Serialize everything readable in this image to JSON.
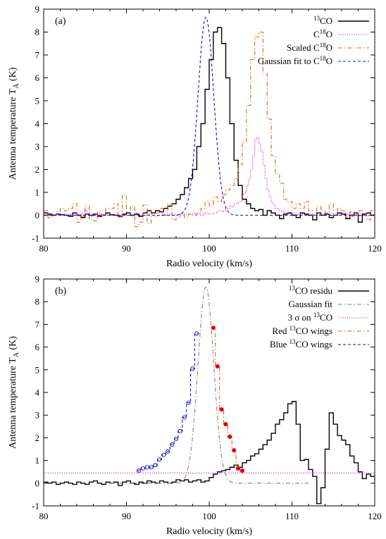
{
  "chart_data": [
    {
      "type": "line",
      "panel_label": "(a)",
      "xlabel": "Radio velocity (km/s)",
      "ylabel": {
        "main": "Antenna temperature T",
        "sub": "A",
        "tail": " (K)"
      },
      "xlim": [
        80,
        120
      ],
      "ylim": [
        -1,
        9
      ],
      "xticks": [
        80,
        90,
        100,
        110,
        120
      ],
      "yticks": [
        -1,
        0,
        1,
        2,
        3,
        4,
        5,
        6,
        7,
        8,
        9
      ],
      "grid": false,
      "legend_position": "top-right",
      "colors": {
        "c13o": "#000000",
        "c18o": "#e000e0",
        "scaled": "#e06010",
        "gauss": "#1010c8"
      },
      "legend": [
        {
          "key": "c13o",
          "sup": "13",
          "text": "CO",
          "style": "solid"
        },
        {
          "key": "c18o",
          "prefix": "C",
          "sup": "18",
          "text": "O",
          "style": "dotted"
        },
        {
          "key": "scaled",
          "prefix": "Scaled C",
          "sup": "18",
          "text": "O",
          "style": "dashdot"
        },
        {
          "key": "gauss",
          "prefix": "Gaussian fit to C",
          "sup": "18",
          "text": "O",
          "style": "dashed"
        }
      ],
      "series": [
        {
          "key": "c13o",
          "plot": "step",
          "x0": 80,
          "dx": 0.5,
          "y": [
            0.1,
            0.05,
            0.0,
            0.05,
            0.02,
            0.0,
            -0.05,
            0.1,
            0.0,
            -0.1,
            0.05,
            0.0,
            0.05,
            -0.05,
            0.0,
            0.1,
            0.02,
            0.0,
            -0.05,
            0.05,
            0.1,
            0.0,
            0.05,
            -0.05,
            0.1,
            0.2,
            0.1,
            0.2,
            0.15,
            0.3,
            0.4,
            0.5,
            0.7,
            0.9,
            1.2,
            1.6,
            2.0,
            3.0,
            4.0,
            5.5,
            6.8,
            8.0,
            8.2,
            7.5,
            6.0,
            4.0,
            2.4,
            1.3,
            0.7,
            0.5,
            0.3,
            0.2,
            0.25,
            0.0,
            0.2,
            0.1,
            0.0,
            -0.15,
            0.05,
            0.1,
            0.0,
            -0.1,
            0.1,
            0.05,
            0.0,
            -0.2,
            0.1,
            0.0,
            0.05,
            -0.1,
            0.0,
            0.1,
            0.05,
            -0.15,
            0.0,
            0.1,
            -0.3,
            0.05,
            0.1,
            0.0
          ]
        },
        {
          "key": "c18o",
          "plot": "step",
          "x0": 80,
          "dx": 0.25,
          "y": [
            0.02,
            0.03,
            0.01,
            0.03,
            0.04,
            0.02,
            0.03,
            0.05,
            0.05,
            0.05,
            0.0,
            -0.02,
            -0.05,
            0.03,
            0.0,
            0.05,
            0.05,
            -0.05,
            0.1,
            0.05,
            0.2,
            0.0,
            0.0,
            -0.05,
            0.05,
            0.04,
            -0.02,
            0.06,
            0.05,
            0.05,
            0.02,
            0.02,
            0.0,
            0.0,
            0.0,
            0.02,
            -0.05,
            0.0,
            0.05,
            0.0,
            0.0,
            0.0,
            -0.02,
            0.02,
            0.1,
            0.02,
            0.0,
            0.0,
            0.0,
            0.0,
            0.0,
            0.05,
            0.0,
            0.0,
            -0.05,
            0.0,
            0.0,
            0.05,
            0.05,
            0.0,
            0.0,
            0.02,
            0.0,
            0.05,
            0.0,
            0.02,
            0.05,
            0.0,
            0.05,
            0.05,
            0.05,
            0.05,
            0.1,
            0.05,
            0.05,
            0.05,
            0.0,
            0.05,
            0.1,
            0.1,
            0.05,
            0.05,
            0.1,
            0.1,
            0.2,
            0.2,
            0.15,
            0.2,
            0.3,
            0.3,
            0.4,
            0.35,
            0.5,
            0.5,
            0.6,
            0.6,
            0.9,
            1.0,
            1.3,
            1.6,
            2.0,
            2.6,
            3.3,
            3.4,
            3.1,
            2.8,
            2.2,
            1.6,
            1.1,
            0.8,
            0.55,
            0.45,
            0.3,
            0.25,
            0.2,
            0.18,
            0.12,
            0.1,
            0.08,
            0.07,
            0.1,
            0.05,
            0.02,
            0.05,
            0.06,
            0.04,
            0.02,
            0.0,
            0.0,
            0.03,
            0.03,
            0.0,
            0.02,
            0.03,
            0.0,
            0.05,
            0.05,
            0.05,
            0.02,
            0.0,
            0.01,
            0.0,
            0.02,
            0.02,
            0.03,
            0.04,
            0.06,
            0.0,
            0.05,
            -0.06,
            0.1,
            0.04,
            -0.02,
            -0.01,
            0.01,
            0.0,
            0.02,
            0.01,
            0.04,
            0.01,
            0.03,
            0.03,
            0.0,
            0.05
          ]
        },
        {
          "key": "scaled",
          "plot": "step",
          "x0": 80,
          "dx": 0.5,
          "y": [
            0.2,
            -0.1,
            0.0,
            0.15,
            0.3,
            0.2,
            0.3,
            0.5,
            -0.3,
            -0.05,
            0.4,
            -0.2,
            -0.25,
            0.15,
            0.0,
            0.3,
            0.3,
            0.5,
            -0.1,
            0.9,
            0.0,
            0.4,
            -0.5,
            -0.3,
            0.45,
            -0.35,
            0.2,
            0.1,
            0.3,
            0.0,
            0.5,
            -0.2,
            -0.1,
            0.1,
            -0.1,
            0.05,
            0.0,
            0.1,
            0.3,
            0.6,
            0.4,
            0.8,
            0.6,
            0.9,
            1.1,
            1.3,
            1.6,
            2.2,
            3.2,
            4.8,
            6.8,
            7.8,
            8.0,
            6.2,
            4.2,
            2.6,
            1.8,
            1.4,
            0.7,
            0.6,
            0.3,
            0.5,
            0.3,
            0.6,
            0.2,
            0.0,
            0.4,
            0.2,
            0.1,
            0.5,
            0.0,
            0.3,
            0.2,
            -0.1,
            0.15,
            0.0,
            0.2,
            0.1,
            -0.2,
            0.2,
            0.25,
            0.0,
            0.1,
            -0.1,
            0.2,
            0.1,
            0.05,
            -0.3,
            0.0,
            0.05,
            0.1,
            0.15,
            0.05,
            0.0,
            -0.1,
            0.0,
            -0.2,
            -0.3,
            -0.8,
            0.1,
            0.0
          ]
        },
        {
          "key": "gauss",
          "plot": "gaussian",
          "amplitude": 8.65,
          "center": 99.6,
          "sigma": 0.95,
          "range": [
            80,
            120
          ]
        }
      ]
    },
    {
      "type": "line",
      "panel_label": "(b)",
      "xlabel": "Radio velocity (km/s)",
      "ylabel": {
        "main": "Antenna temperature T",
        "sub": "A",
        "tail": " (K)"
      },
      "xlim": [
        80,
        120
      ],
      "ylim": [
        -1,
        9
      ],
      "xticks": [
        80,
        90,
        100,
        110,
        120
      ],
      "yticks": [
        -1,
        0,
        1,
        2,
        3,
        4,
        5,
        6,
        7,
        8,
        9
      ],
      "grid": false,
      "legend_position": "top-right",
      "colors": {
        "resid": "#000000",
        "gauss": "#808080",
        "sigma": "#e000e0",
        "red": "#e06010",
        "blue": "#1010c8",
        "red_marker": "#e00000"
      },
      "legend": [
        {
          "key": "resid",
          "sup": "13",
          "text": "CO residu",
          "style": "solid"
        },
        {
          "key": "gauss",
          "text": "Gaussian fit",
          "style": "dashdot"
        },
        {
          "key": "sigma",
          "prefix": "3 σ on ",
          "sup": "13",
          "text": "CO",
          "style": "dotted"
        },
        {
          "key": "red",
          "prefix": "Red ",
          "sup": "13",
          "text": "CO wings",
          "style": "dashdot"
        },
        {
          "key": "blue",
          "prefix": "Blue ",
          "sup": "13",
          "text": "CO wings",
          "style": "dashed"
        }
      ],
      "series": [
        {
          "key": "resid",
          "plot": "step",
          "x0": 80,
          "dx": 0.5,
          "y": [
            0.05,
            0.0,
            0.05,
            -0.05,
            0.0,
            0.05,
            0.0,
            -0.05,
            0.05,
            0.0,
            -0.05,
            0.05,
            0.1,
            0.0,
            -0.05,
            0.05,
            0.0,
            0.05,
            -0.1,
            0.05,
            0.1,
            0.0,
            -0.05,
            0.05,
            0.0,
            0.1,
            0.05,
            0.0,
            0.1,
            0.05,
            0.0,
            0.05,
            0.15,
            0.1,
            0.15,
            0.05,
            0.1,
            0.15,
            0.05,
            0.1,
            0.25,
            0.4,
            0.5,
            0.55,
            0.6,
            0.7,
            0.8,
            0.7,
            0.9,
            1.0,
            1.2,
            1.3,
            1.5,
            1.7,
            1.9,
            2.2,
            2.6,
            2.8,
            3.1,
            3.5,
            3.6,
            2.6,
            1.0,
            1.05,
            0.6,
            0.3,
            -0.9,
            -0.2,
            1.5,
            3.1,
            2.6,
            2.1,
            1.9,
            1.7,
            1.2,
            0.9,
            0.5,
            0.2,
            0.4,
            0.3,
            0.1,
            0.05,
            0.2,
            0.35,
            0.3,
            0.1,
            0.25,
            0.15,
            0.0,
            0.05,
            0.1,
            -0.05,
            0.0,
            0.15,
            0.1,
            0.05,
            0.0,
            -0.05,
            0.05,
            0.1,
            0.05,
            0.0,
            -0.05,
            0.05,
            0.0,
            -0.1,
            0.0,
            0.05,
            0.0,
            0.1,
            0.05,
            0.0,
            -0.05,
            0.05,
            0.0,
            -0.1,
            0.05,
            0.0,
            0.05,
            -0.05,
            0.05,
            0.0,
            0.1,
            0.05,
            -0.05,
            0.05,
            0.0,
            -0.1,
            0.05,
            0.1,
            0.0,
            -0.05,
            0.05,
            0.0,
            -0.05,
            0.05,
            0.0,
            0.1,
            0.05,
            0.0,
            -0.1,
            0.05,
            0.05,
            0.0,
            -0.05,
            0.1,
            0.05,
            0.0,
            0.05,
            0.0,
            0.1,
            0.15,
            0.05,
            0.1,
            0.0,
            0.1,
            0.15,
            0.1
          ]
        },
        {
          "key": "gauss",
          "plot": "gaussian",
          "amplitude": 8.65,
          "center": 99.6,
          "sigma": 0.95,
          "range": [
            88,
            112
          ]
        },
        {
          "key": "sigma",
          "plot": "hline",
          "y": 0.45,
          "range": [
            80,
            120
          ]
        },
        {
          "key": "blue",
          "plot": "step_markers",
          "marker": "open-circle",
          "x": [
            91.5,
            92.0,
            92.5,
            93.0,
            93.5,
            94.0,
            94.5,
            95.0,
            95.5,
            96.0,
            96.5,
            97.0,
            97.5,
            98.0,
            98.5
          ],
          "y": [
            0.55,
            0.65,
            0.7,
            0.7,
            0.8,
            1.05,
            1.25,
            1.4,
            1.7,
            1.95,
            2.3,
            2.9,
            3.55,
            5.05,
            6.6
          ]
        },
        {
          "key": "red",
          "plot": "step_markers",
          "marker": "filled-circle",
          "x": [
            100.5,
            101.0,
            101.5,
            102.0,
            102.5,
            103.0,
            103.5,
            104.0
          ],
          "y": [
            6.85,
            5.15,
            3.25,
            2.6,
            2.05,
            1.45,
            0.65,
            0.55
          ]
        }
      ]
    }
  ]
}
